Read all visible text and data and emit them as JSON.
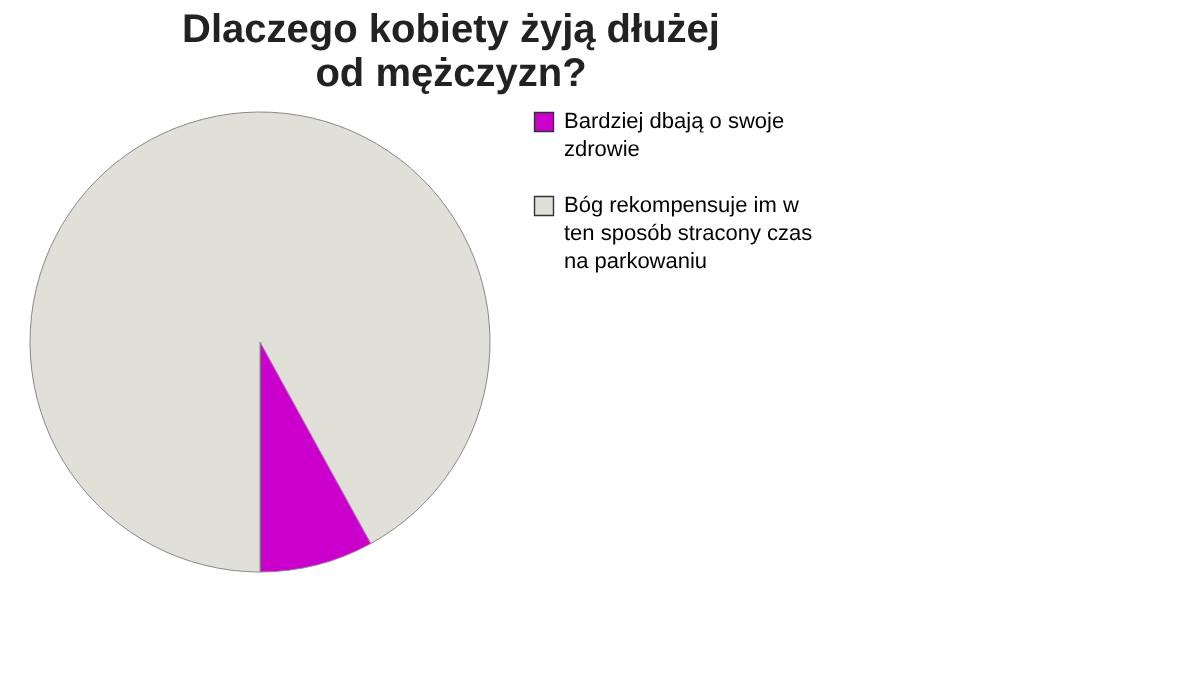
{
  "chart_data": {
    "type": "pie",
    "title": "Dlaczego kobiety żyją dłużej od mężczyzn?",
    "categories": [
      "Bardziej dbają o swoje zdrowie",
      "Bóg rekompensuje im w ten sposób stracony czas na parkowaniu"
    ],
    "values": [
      8,
      92
    ],
    "colors": [
      "#cc00cc",
      "#e0e0d8"
    ],
    "legend": "right"
  }
}
